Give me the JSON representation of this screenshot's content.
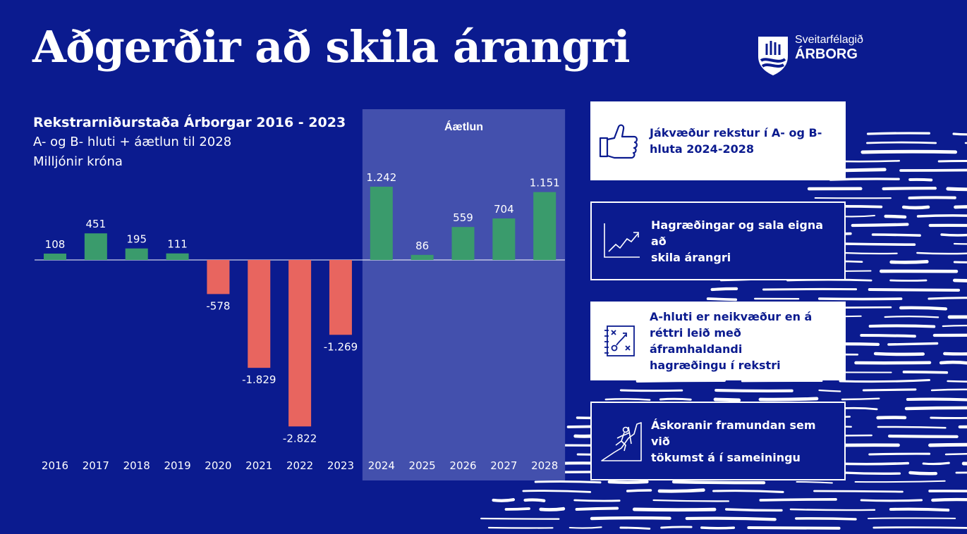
{
  "page": {
    "title": "Aðgerðir að skila árangri",
    "logo": {
      "line1": "Sveitarfélagið",
      "line2": "ÁRBORG"
    }
  },
  "chart_header": {
    "title": "Rekstrarniðurstaða Árborgar 2016 - 2023",
    "subtitle1": "A- og B- hluti + áætlun til 2028",
    "subtitle2": "Milljónir króna"
  },
  "chart_data": {
    "type": "bar",
    "categories": [
      "2016",
      "2017",
      "2018",
      "2019",
      "2020",
      "2021",
      "2022",
      "2023",
      "2024",
      "2025",
      "2026",
      "2027",
      "2028"
    ],
    "values": [
      108,
      451,
      195,
      111,
      -578,
      -1829,
      -2822,
      -1269,
      1242,
      86,
      559,
      704,
      1151
    ],
    "data_labels": [
      "108",
      "451",
      "195",
      "111",
      "-578",
      "-1.829",
      "-2.822",
      "-1.269",
      "1.242",
      "86",
      "559",
      "704",
      "1.151"
    ],
    "title": "Rekstrarniðurstaða Árborgar 2016 - 2023",
    "ylabel": "Milljónir króna",
    "ylim": [
      -2822,
      1242
    ],
    "forecast": {
      "label": "Áætlun",
      "from": "2024",
      "to": "2028"
    },
    "colors": {
      "positive": "#3a9b6c",
      "negative": "#e8655f",
      "forecast_band": "#4350ad",
      "axis": "#ffffff"
    },
    "grid": false,
    "legend": "none"
  },
  "info_boxes": [
    {
      "text_lines": [
        "Jákvæður rekstur í A- og B-",
        "hluta 2024-2028"
      ],
      "style": "light",
      "icon": "thumbs-up-icon"
    },
    {
      "text_lines": [
        "Hagræðingar og sala eigna að",
        "skila árangri"
      ],
      "style": "dark",
      "icon": "growth-chart-icon"
    },
    {
      "text_lines": [
        "A-hluti er neikvæður en á",
        "réttri leið með áframhaldandi",
        "hagræðingu í rekstri"
      ],
      "style": "light",
      "icon": "strategy-board-icon"
    },
    {
      "text_lines": [
        "Áskoranir framundan sem við",
        "tökumst á í sameiningu"
      ],
      "style": "dark",
      "icon": "climber-icon"
    }
  ],
  "colors": {
    "background": "#0b1b8f",
    "text": "#ffffff",
    "box_text": "#0b1b8f"
  }
}
